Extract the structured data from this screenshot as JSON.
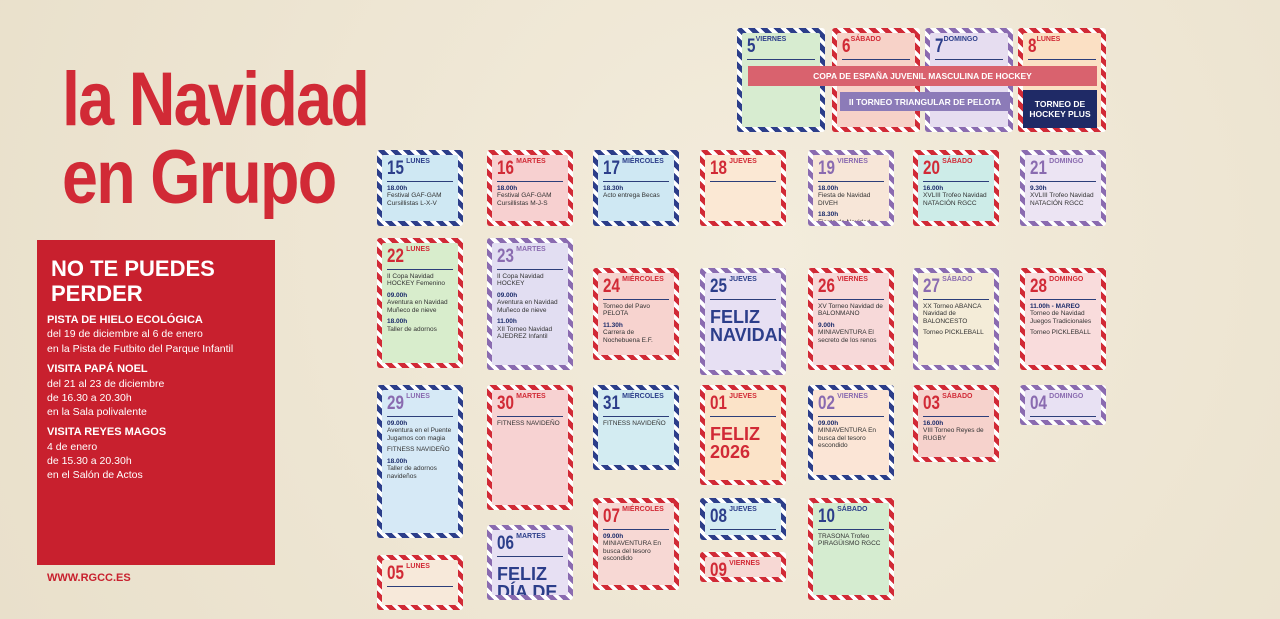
{
  "header": {
    "title_line1": "la Navidad",
    "title_line2": "en Grupo"
  },
  "highlights": {
    "title": "NO TE PUEDES PERDER",
    "items": [
      {
        "title": "PISTA DE HIELO ECOLÓGICA",
        "lines": [
          "del 19 de diciembre al 6 de enero",
          "en la Pista de Futbito del Parque Infantil"
        ]
      },
      {
        "title": "VISITA PAPÁ NOEL",
        "lines": [
          "del 21 al 23 de diciembre",
          "de 16.30 a 20.30h",
          "en la Sala polivalente"
        ]
      },
      {
        "title": "VISITA REYES MAGOS",
        "lines": [
          "4 de enero",
          "de 15.30 a 20.30h",
          "en el Salón de Actos"
        ]
      }
    ]
  },
  "footer": {
    "website": "WWW.RGCC.ES"
  },
  "banners": [
    "COPA DE ESPAÑA JUVENIL MASCULINA DE HOCKEY",
    "II TORNEO TRIANGULAR DE PELOTA",
    "TORNEO DE HOCKEY PLUS"
  ],
  "days": [
    {
      "day": "5",
      "weekday": "VIERNES",
      "events": []
    },
    {
      "day": "6",
      "weekday": "SÁBADO",
      "events": []
    },
    {
      "day": "7",
      "weekday": "DOMINGO",
      "events": []
    },
    {
      "day": "8",
      "weekday": "LUNES",
      "events": []
    },
    {
      "day": "15",
      "weekday": "LUNES",
      "events": [
        {
          "time": "18.00h",
          "text": "Festival GAF-GAM Cursillistas L-X-V"
        }
      ]
    },
    {
      "day": "16",
      "weekday": "MARTES",
      "events": [
        {
          "time": "18.00h",
          "text": "Festival GAF-GAM Cursillistas M-J-S"
        }
      ]
    },
    {
      "day": "17",
      "weekday": "MIÉRCOLES",
      "events": [
        {
          "time": "18.30h",
          "text": "Acto entrega Becas"
        }
      ]
    },
    {
      "day": "18",
      "weekday": "JUEVES",
      "events": []
    },
    {
      "day": "19",
      "weekday": "VIERNES",
      "events": [
        {
          "time": "18.00h",
          "text": "Fiesta de Navidad DIVEH"
        },
        {
          "time": "18.30h",
          "text": "Fiesta de Navidad TENIS"
        }
      ]
    },
    {
      "day": "20",
      "weekday": "SÁBADO",
      "events": [
        {
          "time": "16.00h",
          "text": "XVLIII Trofeo Navidad NATACIÓN RGCC"
        }
      ]
    },
    {
      "day": "21",
      "weekday": "DOMINGO",
      "events": [
        {
          "time": "9.30h",
          "text": "XVLIII Trofeo Navidad NATACIÓN RGCC"
        }
      ]
    },
    {
      "day": "22",
      "weekday": "LUNES",
      "events": [
        {
          "text": "II Copa Navidad HOCKEY Femenino"
        },
        {
          "time": "09.00h",
          "text": "Aventura en Navidad Muñeco de nieve"
        },
        {
          "time": "18.00h",
          "text": "Taller de adornos"
        }
      ]
    },
    {
      "day": "23",
      "weekday": "MARTES",
      "events": [
        {
          "text": "II Copa Navidad HOCKEY"
        },
        {
          "time": "09.00h",
          "text": "Aventura en Navidad Muñeco de nieve"
        },
        {
          "time": "11.00h",
          "text": "XII Torneo Navidad AJEDREZ Infantil"
        }
      ]
    },
    {
      "day": "24",
      "weekday": "MIÉRCOLES",
      "events": [
        {
          "text": "Torneo del Pavo PELOTA"
        },
        {
          "time": "11.30h",
          "text": "Carrera de Nochebuena E.F."
        }
      ]
    },
    {
      "day": "25",
      "weekday": "JUEVES",
      "big": "FELIZ NAVIDAD",
      "events": []
    },
    {
      "day": "26",
      "weekday": "VIERNES",
      "events": [
        {
          "text": "XV Torneo Navidad de BALONMANO"
        },
        {
          "time": "9.00h",
          "text": "MINIAVENTURA El secreto de los renos"
        }
      ]
    },
    {
      "day": "27",
      "weekday": "SÁBADO",
      "events": [
        {
          "text": "XX Torneo ABANCA Navidad de BALONCESTO"
        },
        {
          "text": "Torneo PICKLEBALL"
        }
      ]
    },
    {
      "day": "28",
      "weekday": "DOMINGO",
      "events": [
        {
          "time": "11.00h - MAREO",
          "text": "Torneo de Navidad Juegos Tradicionales"
        },
        {
          "text": "Torneo PICKLEBALL"
        }
      ]
    },
    {
      "day": "29",
      "weekday": "LUNES",
      "events": [
        {
          "time": "09.00h",
          "text": "Aventura en el Puente Jugamos con magia"
        },
        {
          "text": "FITNESS NAVIDEÑO"
        },
        {
          "time": "18.00h",
          "text": "Taller de adornos navideños"
        }
      ]
    },
    {
      "day": "30",
      "weekday": "MARTES",
      "events": [
        {
          "text": "FITNESS NAVIDEÑO"
        }
      ]
    },
    {
      "day": "31",
      "weekday": "MIÉRCOLES",
      "events": [
        {
          "text": "FITNESS NAVIDEÑO"
        }
      ]
    },
    {
      "day": "01",
      "weekday": "JUEVES",
      "big": "FELIZ 2026",
      "events": []
    },
    {
      "day": "02",
      "weekday": "VIERNES",
      "events": [
        {
          "time": "09.00h",
          "text": "MINIAVENTURA En busca del tesoro escondido"
        }
      ]
    },
    {
      "day": "03",
      "weekday": "SÁBADO",
      "events": [
        {
          "time": "16.00h",
          "text": "VIII Torneo Reyes de RUGBY"
        }
      ]
    },
    {
      "day": "04",
      "weekday": "DOMINGO",
      "events": []
    },
    {
      "day": "05",
      "weekday": "LUNES",
      "events": []
    },
    {
      "day": "06",
      "weekday": "MARTES",
      "big": "FELIZ DÍA DE REYES",
      "events": []
    },
    {
      "day": "07",
      "weekday": "MIÉRCOLES",
      "events": [
        {
          "time": "09.00h",
          "text": "MINIAVENTURA En busca del tesoro escondido"
        }
      ]
    },
    {
      "day": "08",
      "weekday": "JUEVES",
      "events": []
    },
    {
      "day": "09",
      "weekday": "VIERNES",
      "events": []
    },
    {
      "day": "10",
      "weekday": "SÁBADO",
      "events": [
        {
          "text": "TRASONA Trofeo PIRAGÜISMO RGCC"
        }
      ]
    }
  ]
}
